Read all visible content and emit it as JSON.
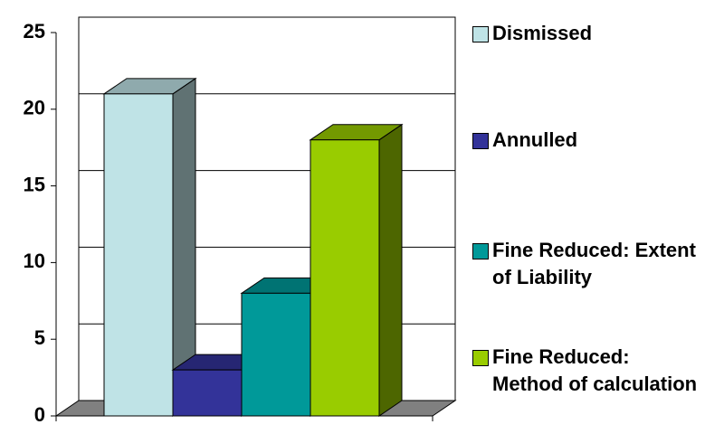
{
  "chart_data": {
    "type": "bar",
    "style": "3d",
    "categories": [
      null
    ],
    "series": [
      {
        "name": "Dismissed",
        "color": "#bfe3e6",
        "values": [
          21
        ]
      },
      {
        "name": "Annulled",
        "color": "#333399",
        "values": [
          3
        ]
      },
      {
        "name": "Fine Reduced: Extent of Liability",
        "color": "#009999",
        "values": [
          8
        ]
      },
      {
        "name": "Fine Reduced: Method of calculation",
        "color": "#99cc00",
        "values": [
          18
        ]
      }
    ],
    "ylim": [
      0,
      25
    ],
    "yticks": [
      0,
      5,
      10,
      15,
      20,
      25
    ],
    "grid": true,
    "legend": "right"
  }
}
